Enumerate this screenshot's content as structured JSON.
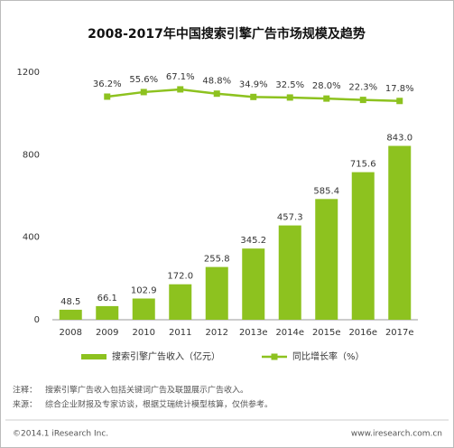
{
  "chart_data": {
    "type": "bar_line",
    "title": "2008-2017年中国搜索引擎广告市场规模及趋势",
    "categories": [
      "2008",
      "2009",
      "2010",
      "2011",
      "2012",
      "2013e",
      "2014e",
      "2015e",
      "2016e",
      "2017e"
    ],
    "series": [
      {
        "name": "搜索引擎广告收入（亿元）",
        "type": "bar",
        "color": "#8dc21f",
        "values": [
          48.5,
          66.1,
          102.9,
          172.0,
          255.8,
          345.2,
          457.3,
          585.4,
          715.6,
          843.0
        ],
        "value_labels": [
          "48.5",
          "66.1",
          "102.9",
          "172.0",
          "255.8",
          "345.2",
          "457.3",
          "585.4",
          "715.6",
          "843.0"
        ]
      },
      {
        "name": "同比增长率（%）",
        "type": "line",
        "axis": "y2",
        "color": "#8dc21f",
        "values": [
          null,
          36.2,
          55.6,
          67.1,
          48.8,
          34.9,
          32.5,
          28.0,
          22.3,
          17.8
        ],
        "value_labels": [
          null,
          "36.2%",
          "55.6%",
          "67.1%",
          "48.8%",
          "34.9%",
          "32.5%",
          "28.0%",
          "22.3%",
          "17.8%"
        ]
      }
    ],
    "ylim": [
      0,
      1200
    ],
    "yticks": [
      0,
      400,
      800,
      1200
    ],
    "y2lim": [
      -914,
      140
    ],
    "notes": [
      {
        "label": "注释：",
        "text": "搜索引擎广告收入包括关键词广告及联盟展示广告收入。"
      },
      {
        "label": "来源：",
        "text": "综合企业财报及专家访谈，根据艾瑞统计模型核算，仅供参考。"
      }
    ],
    "footer": {
      "left": "©2014.1 iResearch Inc.",
      "right": "www.iresearch.com.cn"
    }
  }
}
